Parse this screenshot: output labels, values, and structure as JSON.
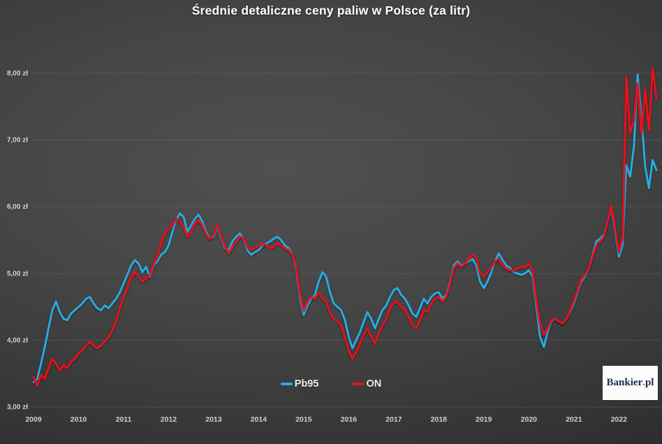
{
  "brand": {
    "name_main": "Bankier",
    "dot": ".",
    "name_suffix": "pl"
  },
  "chart_data": {
    "type": "line",
    "title": "Średnie detaliczne ceny paliw w Polsce (za litr)",
    "currency_unit": "zł",
    "x_unit": "month",
    "x_start": "2009-01",
    "x_end": "2022-11",
    "ylim": [
      3.0,
      8.0
    ],
    "grid": "horizontal",
    "legend_position": "bottom-center",
    "background": "dark-gray-gradient",
    "axis_text_color": "#cfcfcf",
    "y_ticks": [
      {
        "value": 3,
        "label": "3,00 zł"
      },
      {
        "value": 4,
        "label": "4,00 zł"
      },
      {
        "value": 5,
        "label": "5,00 zł"
      },
      {
        "value": 6,
        "label": "6,00 zł"
      },
      {
        "value": 7,
        "label": "7,00 zł"
      },
      {
        "value": 8,
        "label": "8,00 zł"
      }
    ],
    "x_tick_labels": [
      "2009",
      "2010",
      "2011",
      "2012",
      "2013",
      "2014",
      "2015",
      "2016",
      "2017",
      "2018",
      "2019",
      "2020",
      "2021",
      "2022"
    ],
    "series": [
      {
        "name": "Pb95",
        "color": "#29ABE2",
        "values": [
          3.37,
          3.42,
          3.65,
          3.9,
          4.18,
          4.45,
          4.58,
          4.42,
          4.32,
          4.3,
          4.4,
          4.45,
          4.5,
          4.55,
          4.62,
          4.65,
          4.55,
          4.48,
          4.45,
          4.52,
          4.48,
          4.55,
          4.62,
          4.72,
          4.85,
          4.98,
          5.12,
          5.2,
          5.15,
          5.02,
          5.1,
          4.95,
          5.12,
          5.18,
          5.28,
          5.32,
          5.42,
          5.62,
          5.8,
          5.9,
          5.85,
          5.62,
          5.72,
          5.82,
          5.88,
          5.78,
          5.62,
          5.52,
          5.55,
          5.68,
          5.52,
          5.38,
          5.35,
          5.48,
          5.55,
          5.6,
          5.5,
          5.35,
          5.28,
          5.32,
          5.35,
          5.42,
          5.45,
          5.48,
          5.52,
          5.55,
          5.5,
          5.42,
          5.38,
          5.28,
          5.05,
          4.62,
          4.38,
          4.52,
          4.62,
          4.68,
          4.88,
          5.02,
          4.95,
          4.72,
          4.55,
          4.5,
          4.45,
          4.3,
          4.05,
          3.88,
          4.0,
          4.12,
          4.28,
          4.42,
          4.32,
          4.18,
          4.32,
          4.45,
          4.52,
          4.65,
          4.75,
          4.78,
          4.68,
          4.62,
          4.52,
          4.4,
          4.35,
          4.48,
          4.62,
          4.55,
          4.65,
          4.7,
          4.72,
          4.62,
          4.68,
          4.88,
          5.12,
          5.18,
          5.12,
          5.15,
          5.18,
          5.22,
          5.12,
          4.88,
          4.78,
          4.88,
          5.02,
          5.18,
          5.3,
          5.2,
          5.12,
          5.08,
          5.02,
          5.0,
          4.98,
          5.0,
          5.05,
          4.95,
          4.5,
          4.05,
          3.9,
          4.12,
          4.28,
          4.32,
          4.28,
          4.25,
          4.32,
          4.42,
          4.55,
          4.72,
          4.88,
          4.95,
          5.08,
          5.28,
          5.48,
          5.52,
          5.58,
          5.78,
          5.98,
          5.62,
          5.25,
          5.42,
          6.62,
          6.45,
          6.9,
          7.98,
          7.35,
          6.6,
          6.28,
          6.7,
          6.55
        ]
      },
      {
        "name": "ON",
        "color": "#E8101C",
        "values": [
          3.45,
          3.32,
          3.48,
          3.42,
          3.58,
          3.72,
          3.65,
          3.55,
          3.62,
          3.58,
          3.68,
          3.72,
          3.8,
          3.85,
          3.92,
          3.98,
          3.92,
          3.88,
          3.92,
          3.98,
          4.05,
          4.15,
          4.28,
          4.48,
          4.65,
          4.78,
          4.95,
          5.02,
          4.95,
          4.88,
          4.92,
          4.98,
          5.15,
          5.25,
          5.45,
          5.62,
          5.65,
          5.72,
          5.82,
          5.78,
          5.7,
          5.55,
          5.62,
          5.75,
          5.8,
          5.72,
          5.58,
          5.52,
          5.58,
          5.72,
          5.55,
          5.42,
          5.3,
          5.4,
          5.48,
          5.55,
          5.52,
          5.4,
          5.35,
          5.38,
          5.42,
          5.45,
          5.42,
          5.38,
          5.4,
          5.45,
          5.42,
          5.38,
          5.35,
          5.28,
          5.1,
          4.7,
          4.45,
          4.6,
          4.65,
          4.62,
          4.72,
          4.62,
          4.58,
          4.42,
          4.32,
          4.28,
          4.22,
          4.05,
          3.85,
          3.72,
          3.82,
          3.95,
          4.08,
          4.18,
          4.05,
          3.95,
          4.1,
          4.22,
          4.32,
          4.48,
          4.55,
          4.58,
          4.5,
          4.45,
          4.35,
          4.22,
          4.18,
          4.3,
          4.45,
          4.42,
          4.55,
          4.62,
          4.65,
          4.58,
          4.65,
          4.85,
          5.08,
          5.15,
          5.1,
          5.15,
          5.22,
          5.28,
          5.25,
          5.0,
          4.95,
          5.02,
          5.1,
          5.18,
          5.22,
          5.12,
          5.08,
          5.05,
          5.05,
          5.08,
          5.1,
          5.1,
          5.15,
          5.05,
          4.6,
          4.25,
          4.08,
          4.18,
          4.3,
          4.32,
          4.28,
          4.25,
          4.32,
          4.45,
          4.6,
          4.75,
          4.92,
          4.98,
          5.08,
          5.25,
          5.42,
          5.48,
          5.55,
          5.78,
          6.02,
          5.68,
          5.32,
          5.55,
          7.95,
          7.1,
          7.3,
          7.85,
          7.1,
          7.75,
          7.15,
          8.08,
          7.62
        ]
      }
    ]
  }
}
